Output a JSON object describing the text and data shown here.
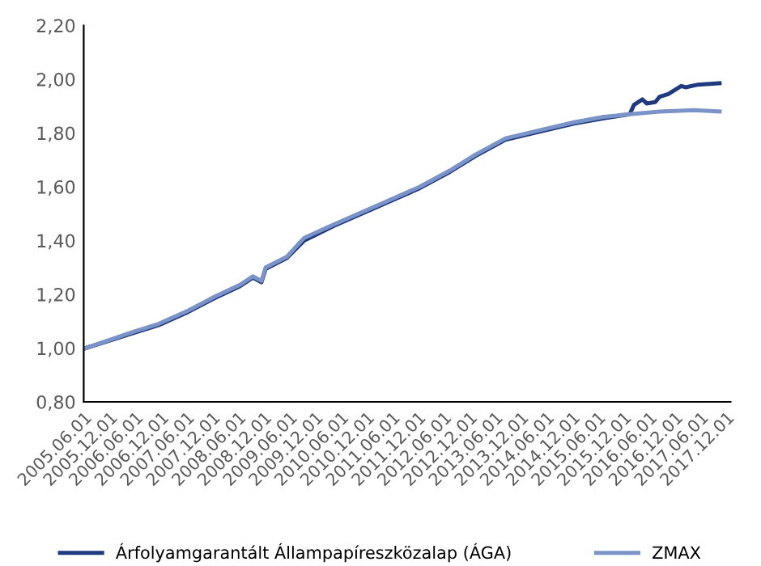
{
  "chart_data": {
    "type": "line",
    "series": [
      {
        "name": "Árfolyamgarantált Állampapíreszközalap (ÁGA)",
        "color": "#1f3a80",
        "x": [
          "2005-06",
          "2006-05",
          "2006-11",
          "2007-06",
          "2007-12",
          "2008-06",
          "2008-09",
          "2008-11",
          "2008-12",
          "2009-05",
          "2009-09",
          "2010-04",
          "2011-02",
          "2011-12",
          "2012-07",
          "2013-01",
          "2013-08",
          "2014-04",
          "2014-12",
          "2015-07",
          "2016-01",
          "2016-02",
          "2016-04",
          "2016-05",
          "2016-07",
          "2016-08",
          "2016-10",
          "2017-01",
          "2017-02",
          "2017-05",
          "2017-10"
        ],
        "values": [
          1.0,
          1.055,
          1.085,
          1.135,
          1.185,
          1.23,
          1.262,
          1.245,
          1.295,
          1.335,
          1.4,
          1.455,
          1.525,
          1.595,
          1.655,
          1.715,
          1.775,
          1.805,
          1.835,
          1.855,
          1.87,
          1.905,
          1.925,
          1.91,
          1.915,
          1.935,
          1.945,
          1.975,
          1.97,
          1.98,
          1.985
        ]
      },
      {
        "name": "ZMAX",
        "color": "#7a93c8",
        "x": [
          "2005-06",
          "2006-05",
          "2006-11",
          "2007-06",
          "2007-12",
          "2008-06",
          "2008-09",
          "2008-11",
          "2008-12",
          "2009-05",
          "2009-09",
          "2010-04",
          "2011-02",
          "2011-12",
          "2012-07",
          "2013-01",
          "2013-08",
          "2014-04",
          "2014-12",
          "2015-07",
          "2016-01",
          "2016-08",
          "2017-04",
          "2017-10"
        ],
        "values": [
          1.0,
          1.06,
          1.09,
          1.14,
          1.19,
          1.235,
          1.267,
          1.25,
          1.3,
          1.34,
          1.41,
          1.46,
          1.53,
          1.6,
          1.66,
          1.72,
          1.78,
          1.81,
          1.84,
          1.86,
          1.87,
          1.88,
          1.885,
          1.88
        ]
      }
    ],
    "xlim": [
      "2005-06-01",
      "2018-01-01"
    ],
    "xticks": [
      {
        "value": "2005-06-01",
        "label": "2005.06.01"
      },
      {
        "value": "2005-12-01",
        "label": "2005.12.01"
      },
      {
        "value": "2006-06-01",
        "label": "2006.06.01"
      },
      {
        "value": "2006-12-01",
        "label": "2006.12.01"
      },
      {
        "value": "2007-06-01",
        "label": "2007.06.01"
      },
      {
        "value": "2007-12-01",
        "label": "2007.12.01"
      },
      {
        "value": "2008-06-01",
        "label": "2008.06.01"
      },
      {
        "value": "2008-12-01",
        "label": "2008.12.01"
      },
      {
        "value": "2009-06-01",
        "label": "2009.06.01"
      },
      {
        "value": "2009-12-01",
        "label": "2009.12.01"
      },
      {
        "value": "2010-06-01",
        "label": "2010.06.01"
      },
      {
        "value": "2010-12-01",
        "label": "2010.12.01"
      },
      {
        "value": "2011-06-01",
        "label": "2011.06.01"
      },
      {
        "value": "2011-12-01",
        "label": "2011.12.01"
      },
      {
        "value": "2012-06-01",
        "label": "2012.06.01"
      },
      {
        "value": "2012-12-01",
        "label": "2012.12.01"
      },
      {
        "value": "2013-06-01",
        "label": "2013.06.01"
      },
      {
        "value": "2013-12-01",
        "label": "2013.12.01"
      },
      {
        "value": "2014-06-01",
        "label": "2014.06.01"
      },
      {
        "value": "2014-12-01",
        "label": "2014.12.01"
      },
      {
        "value": "2015-06-01",
        "label": "2015.06.01"
      },
      {
        "value": "2015-12-01",
        "label": "2015.12.01"
      },
      {
        "value": "2016-06-01",
        "label": "2016.06.01"
      },
      {
        "value": "2016-12-01",
        "label": "2016.12.01"
      },
      {
        "value": "2017-06-01",
        "label": "2017.06.01"
      },
      {
        "value": "2017-12-01",
        "label": "2017.12.01"
      }
    ],
    "ylim": [
      0.8,
      2.2
    ],
    "yticks": [
      {
        "value": 0.8,
        "label": "0,80"
      },
      {
        "value": 1.0,
        "label": "1,00"
      },
      {
        "value": 1.2,
        "label": "1,20"
      },
      {
        "value": 1.4,
        "label": "1,40"
      },
      {
        "value": 1.6,
        "label": "1,60"
      },
      {
        "value": 1.8,
        "label": "1,80"
      },
      {
        "value": 2.0,
        "label": "2,00"
      },
      {
        "value": 2.2,
        "label": "2,20"
      }
    ],
    "grid": false,
    "legend": "bottom",
    "line_style": "solid",
    "marker": "none"
  }
}
